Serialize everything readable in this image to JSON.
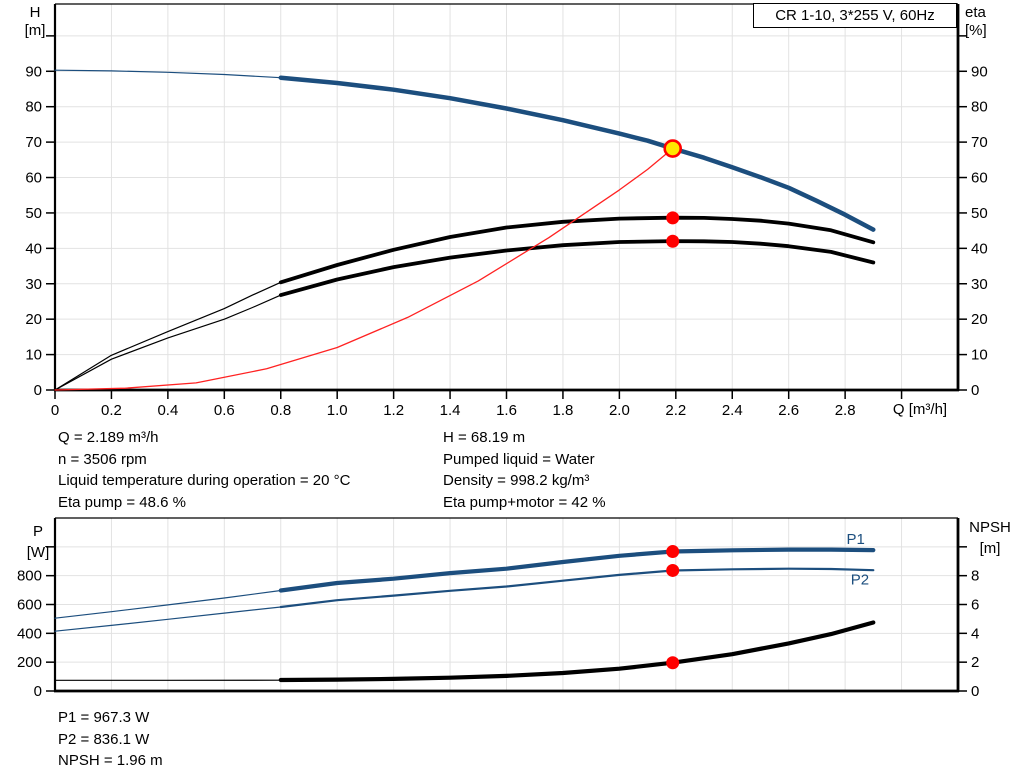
{
  "colors": {
    "curve_blue": "#1c4e7e",
    "curve_black": "#000000",
    "curve_red": "#ff2222",
    "marker_red": "#ff0000",
    "marker_yellow": "#ffe600",
    "grid": "#e2e2e2",
    "axis": "#000000",
    "label_blue": "#1c4e7e"
  },
  "info_top": {
    "left": [
      "Q = 2.189 m³/h",
      "n = 3506 rpm",
      "Liquid temperature during operation = 20 °C",
      "Eta pump = 48.6 %"
    ],
    "right": [
      "H = 68.19 m",
      "Pumped liquid = Water",
      "Density = 998.2 kg/m³",
      "Eta pump+motor = 42 %"
    ]
  },
  "info_bottom": [
    "P1 = 967.3 W",
    "P2 = 836.1 W",
    "NPSH = 1.96 m"
  ],
  "chart_data": [
    {
      "id": "qh-eta-chart",
      "type": "line",
      "title": "CR 1-10, 3*255 V, 60Hz",
      "x_axis": {
        "label": "Q [m³/h]",
        "min": 0,
        "max": 3.2,
        "ticks": [
          0,
          0.2,
          0.4,
          0.6,
          0.8,
          1.0,
          1.2,
          1.4,
          1.6,
          1.8,
          2.0,
          2.2,
          2.4,
          2.6,
          2.8,
          3.0
        ],
        "tick_labels": [
          "0",
          "0.2",
          "0.4",
          "0.6",
          "0.8",
          "1.0",
          "1.2",
          "1.4",
          "1.6",
          "1.8",
          "2.0",
          "2.2",
          "2.4",
          "2.6",
          "2.8",
          ""
        ],
        "grid": [
          0.2,
          0.4,
          0.6,
          0.8,
          1.0,
          1.2,
          1.4,
          1.6,
          1.8,
          2.0,
          2.2,
          2.4,
          2.6,
          2.8,
          3.0
        ]
      },
      "y_left": {
        "label": "H",
        "unit": "[m]",
        "min": 0,
        "max": 109,
        "ticks": [
          0,
          10,
          20,
          30,
          40,
          50,
          60,
          70,
          80,
          90,
          100
        ],
        "tick_labels": [
          "0",
          "10",
          "20",
          "30",
          "40",
          "50",
          "60",
          "70",
          "80",
          "90",
          ""
        ],
        "grid": [
          10,
          20,
          30,
          40,
          50,
          60,
          70,
          80,
          90,
          100
        ]
      },
      "y_right": {
        "label": "eta",
        "unit": "[%]",
        "min": 0,
        "max": 109,
        "ticks": [
          0,
          10,
          20,
          30,
          40,
          50,
          60,
          70,
          80,
          90,
          100
        ],
        "tick_labels": [
          "0",
          "10",
          "20",
          "30",
          "40",
          "50",
          "60",
          "70",
          "80",
          "90",
          ""
        ]
      },
      "series": [
        {
          "name": "qh-curve-extended",
          "color": "#1c4e7e",
          "width": 1.2,
          "axis": "left",
          "points": [
            [
              0,
              90.3
            ],
            [
              0.2,
              90.1
            ],
            [
              0.4,
              89.7
            ],
            [
              0.6,
              89.1
            ],
            [
              0.8,
              88.2
            ]
          ]
        },
        {
          "name": "qh-curve",
          "color": "#1c4e7e",
          "width": 4.5,
          "axis": "left",
          "points": [
            [
              0.8,
              88.2
            ],
            [
              1.0,
              86.7
            ],
            [
              1.2,
              84.8
            ],
            [
              1.4,
              82.4
            ],
            [
              1.6,
              79.5
            ],
            [
              1.8,
              76.2
            ],
            [
              2.0,
              72.4
            ],
            [
              2.1,
              70.4
            ],
            [
              2.189,
              68.19
            ],
            [
              2.3,
              65.6
            ],
            [
              2.4,
              62.9
            ],
            [
              2.5,
              60.1
            ],
            [
              2.6,
              57.1
            ],
            [
              2.7,
              53.4
            ],
            [
              2.8,
              49.5
            ],
            [
              2.9,
              45.3
            ]
          ]
        },
        {
          "name": "eta-pump-curve-extended",
          "color": "#000000",
          "width": 1.2,
          "axis": "right",
          "points": [
            [
              0,
              0
            ],
            [
              0.2,
              9.8
            ],
            [
              0.4,
              16.5
            ],
            [
              0.6,
              23.0
            ],
            [
              0.7,
              26.8
            ],
            [
              0.8,
              30.4
            ]
          ]
        },
        {
          "name": "eta-pump-curve",
          "color": "#000000",
          "width": 3.8,
          "axis": "right",
          "points": [
            [
              0.8,
              30.4
            ],
            [
              1.0,
              35.3
            ],
            [
              1.2,
              39.6
            ],
            [
              1.4,
              43.2
            ],
            [
              1.6,
              45.9
            ],
            [
              1.8,
              47.5
            ],
            [
              2.0,
              48.4
            ],
            [
              2.189,
              48.65
            ],
            [
              2.3,
              48.6
            ],
            [
              2.4,
              48.3
            ],
            [
              2.5,
              47.8
            ],
            [
              2.6,
              47.0
            ],
            [
              2.75,
              45.1
            ],
            [
              2.9,
              41.7
            ]
          ]
        },
        {
          "name": "eta-pump-motor-curve-extended",
          "color": "#000000",
          "width": 1.2,
          "axis": "right",
          "points": [
            [
              0,
              0
            ],
            [
              0.2,
              8.7
            ],
            [
              0.4,
              14.7
            ],
            [
              0.6,
              20.0
            ],
            [
              0.7,
              23.3
            ],
            [
              0.8,
              26.8
            ]
          ]
        },
        {
          "name": "eta-pump-motor-curve",
          "color": "#000000",
          "width": 3.8,
          "axis": "right",
          "points": [
            [
              0.8,
              26.8
            ],
            [
              1.0,
              31.2
            ],
            [
              1.2,
              34.7
            ],
            [
              1.4,
              37.4
            ],
            [
              1.6,
              39.4
            ],
            [
              1.8,
              40.9
            ],
            [
              2.0,
              41.8
            ],
            [
              2.189,
              42.05
            ],
            [
              2.3,
              42.0
            ],
            [
              2.4,
              41.8
            ],
            [
              2.5,
              41.3
            ],
            [
              2.6,
              40.6
            ],
            [
              2.75,
              39.0
            ],
            [
              2.9,
              36.0
            ]
          ]
        },
        {
          "name": "system-curve",
          "color": "#ff2222",
          "width": 1.3,
          "axis": "left",
          "points": [
            [
              0,
              0
            ],
            [
              0.25,
              0.5
            ],
            [
              0.5,
              2.0
            ],
            [
              0.75,
              6.0
            ],
            [
              1.0,
              12.0
            ],
            [
              1.25,
              20.5
            ],
            [
              1.5,
              30.8
            ],
            [
              1.75,
              43.0
            ],
            [
              2.0,
              56.5
            ],
            [
              2.1,
              62.3
            ],
            [
              2.189,
              68.19
            ]
          ]
        }
      ],
      "markers": [
        {
          "name": "eta-pump-duty-point",
          "x": 2.189,
          "y": 48.6,
          "axis": "right",
          "r": 6.5,
          "fill": "#ff0000"
        },
        {
          "name": "eta-pump-motor-duty-point",
          "x": 2.189,
          "y": 42.0,
          "axis": "right",
          "r": 6.5,
          "fill": "#ff0000"
        },
        {
          "name": "duty-point",
          "x": 2.189,
          "y": 68.19,
          "axis": "left",
          "r": 8,
          "fill": "#ffe600",
          "stroke": "#ff0000",
          "stroke_width": 2.6
        }
      ],
      "annotations": []
    },
    {
      "id": "power-npsh-chart",
      "type": "line",
      "title": "",
      "x_axis": {
        "label": "",
        "min": 0,
        "max": 3.2,
        "ticks": [],
        "tick_labels": [],
        "grid": [
          0.2,
          0.4,
          0.6,
          0.8,
          1.0,
          1.2,
          1.4,
          1.6,
          1.8,
          2.0,
          2.2,
          2.4,
          2.6,
          2.8,
          3.0
        ]
      },
      "y_left": {
        "label": "P",
        "unit": "[W]",
        "min": 0,
        "max": 1200,
        "ticks": [
          0,
          200,
          400,
          600,
          800,
          1000
        ],
        "tick_labels": [
          "0",
          "200",
          "400",
          "600",
          "800",
          ""
        ],
        "grid": [
          200,
          400,
          600,
          800,
          1000
        ]
      },
      "y_right": {
        "label": "NPSH",
        "unit": "[m]",
        "min": 0,
        "max": 12,
        "ticks": [
          0,
          2,
          4,
          6,
          8,
          10
        ],
        "tick_labels": [
          "0",
          "2",
          "4",
          "6",
          "8",
          ""
        ]
      },
      "series": [
        {
          "name": "p1-curve-extended",
          "color": "#1c4e7e",
          "width": 1.2,
          "axis": "left",
          "points": [
            [
              0,
              505
            ],
            [
              0.2,
              550
            ],
            [
              0.4,
              597
            ],
            [
              0.6,
              645
            ],
            [
              0.8,
              697
            ]
          ]
        },
        {
          "name": "p1-curve",
          "color": "#1c4e7e",
          "width": 4.2,
          "axis": "left",
          "points": [
            [
              0.8,
              697
            ],
            [
              1.0,
              749
            ],
            [
              1.2,
              779
            ],
            [
              1.4,
              818
            ],
            [
              1.6,
              848
            ],
            [
              1.8,
              895
            ],
            [
              2.0,
              938
            ],
            [
              2.189,
              967.3
            ],
            [
              2.3,
              972
            ],
            [
              2.4,
              976
            ],
            [
              2.6,
              981
            ],
            [
              2.75,
              981
            ],
            [
              2.9,
              977
            ]
          ]
        },
        {
          "name": "p2-curve-extended",
          "color": "#1c4e7e",
          "width": 1.2,
          "axis": "left",
          "points": [
            [
              0,
              415
            ],
            [
              0.2,
              455
            ],
            [
              0.4,
              497
            ],
            [
              0.6,
              540
            ],
            [
              0.8,
              583
            ]
          ]
        },
        {
          "name": "p2-curve",
          "color": "#1c4e7e",
          "width": 2.2,
          "axis": "left",
          "points": [
            [
              0.8,
              583
            ],
            [
              1.0,
              630
            ],
            [
              1.2,
              662
            ],
            [
              1.4,
              695
            ],
            [
              1.6,
              725
            ],
            [
              1.8,
              765
            ],
            [
              2.0,
              805
            ],
            [
              2.189,
              836.1
            ],
            [
              2.4,
              844
            ],
            [
              2.6,
              848
            ],
            [
              2.75,
              846
            ],
            [
              2.9,
              838
            ]
          ]
        },
        {
          "name": "npsh-curve-extended",
          "color": "#000000",
          "width": 1.2,
          "axis": "right",
          "points": [
            [
              0,
              0.74
            ],
            [
              0.4,
              0.74
            ],
            [
              0.8,
              0.75
            ]
          ]
        },
        {
          "name": "npsh-curve",
          "color": "#000000",
          "width": 4.2,
          "axis": "right",
          "points": [
            [
              0.8,
              0.76
            ],
            [
              1.0,
              0.79
            ],
            [
              1.2,
              0.84
            ],
            [
              1.4,
              0.92
            ],
            [
              1.6,
              1.05
            ],
            [
              1.8,
              1.25
            ],
            [
              2.0,
              1.55
            ],
            [
              2.189,
              1.96
            ],
            [
              2.4,
              2.55
            ],
            [
              2.6,
              3.3
            ],
            [
              2.75,
              3.95
            ],
            [
              2.9,
              4.75
            ]
          ]
        }
      ],
      "markers": [
        {
          "name": "p1-duty-point",
          "x": 2.189,
          "y": 967.3,
          "axis": "left",
          "r": 6.5,
          "fill": "#ff0000"
        },
        {
          "name": "p2-duty-point",
          "x": 2.189,
          "y": 836.1,
          "axis": "left",
          "r": 6.5,
          "fill": "#ff0000"
        },
        {
          "name": "npsh-duty-point",
          "x": 2.189,
          "y": 1.96,
          "axis": "right",
          "r": 6.5,
          "fill": "#ff0000"
        }
      ],
      "annotations": [
        {
          "name": "p1-curve-label",
          "text": "P1",
          "x": 2.805,
          "y": 1020,
          "axis": "left",
          "color": "#1c4e7e"
        },
        {
          "name": "p2-curve-label",
          "text": "P2",
          "x": 2.82,
          "y": 740,
          "axis": "left",
          "color": "#1c4e7e"
        }
      ]
    }
  ]
}
